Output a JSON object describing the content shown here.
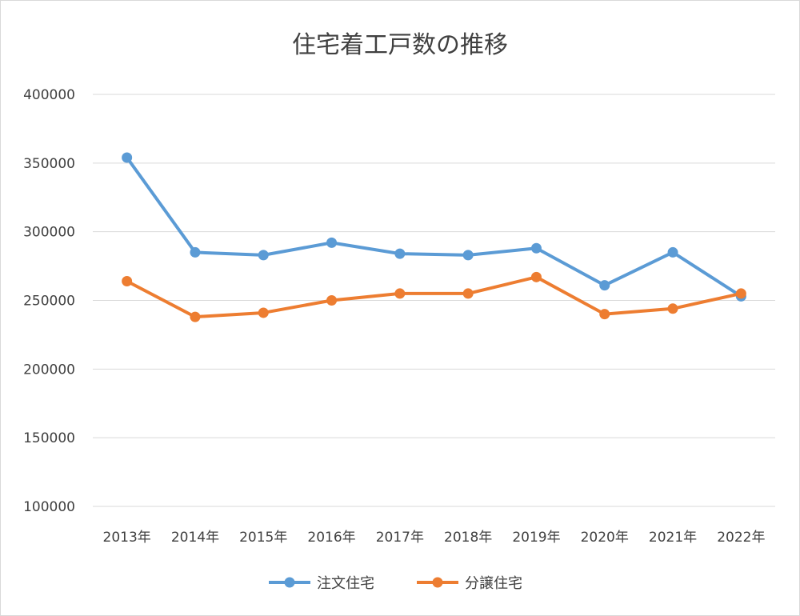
{
  "chart_data": {
    "type": "line",
    "title": "住宅着工戸数の推移",
    "categories": [
      "2013年",
      "2014年",
      "2015年",
      "2016年",
      "2017年",
      "2018年",
      "2019年",
      "2020年",
      "2021年",
      "2022年"
    ],
    "ylim": [
      100000,
      400000
    ],
    "yticks": [
      "400000",
      "350000",
      "300000",
      "250000",
      "200000",
      "150000",
      "100000"
    ],
    "grid": true,
    "legend_position": "bottom",
    "series": [
      {
        "name": "注文住宅",
        "color": "#5B9BD5",
        "values": [
          354000,
          285000,
          283000,
          292000,
          284000,
          283000,
          288000,
          261000,
          285000,
          253000
        ]
      },
      {
        "name": "分譲住宅",
        "color": "#ED7D31",
        "values": [
          264000,
          238000,
          241000,
          250000,
          255000,
          255000,
          267000,
          240000,
          244000,
          255000
        ]
      }
    ]
  }
}
